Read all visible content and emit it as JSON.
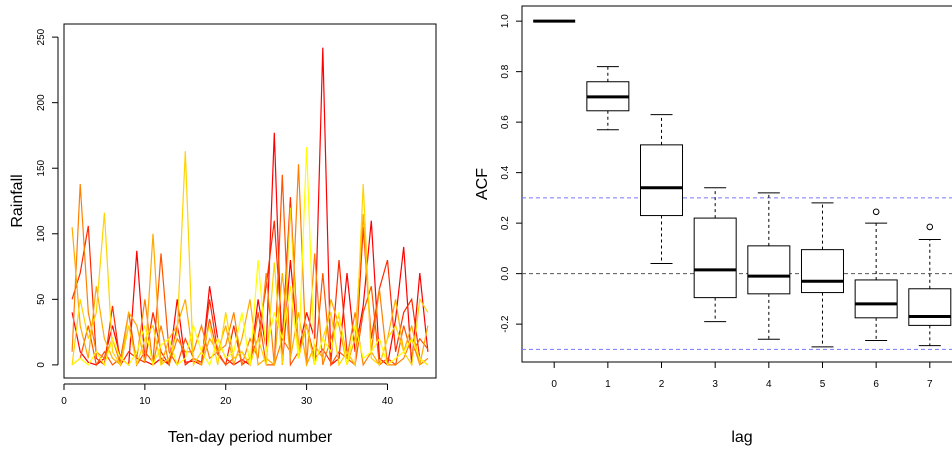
{
  "chart_data": [
    {
      "type": "line",
      "title": "",
      "xlabel": "Ten-day period number",
      "ylabel": "Rainfall",
      "xlim": [
        0,
        46
      ],
      "ylim": [
        -10,
        260
      ],
      "x_ticks": [
        0,
        10,
        20,
        30,
        40
      ],
      "y_ticks": [
        0,
        50,
        100,
        150,
        200,
        250
      ],
      "grid": false,
      "legend": "none",
      "colors": [
        "#ff0000",
        "#ff2a00",
        "#ff5500",
        "#ff8000",
        "#ffaa00",
        "#ffd400",
        "#ffff00"
      ],
      "series": [
        {
          "values": [
            40,
            10,
            2,
            0,
            5,
            30,
            5,
            0,
            87,
            3,
            0,
            5,
            0,
            50,
            2,
            3,
            0,
            60,
            20,
            5,
            0,
            4,
            0,
            50,
            12,
            177,
            0,
            80,
            10,
            40,
            20,
            242,
            0,
            5,
            70,
            10,
            45,
            110,
            5,
            0,
            35,
            90,
            0,
            70,
            10
          ]
        },
        {
          "values": [
            50,
            70,
            106,
            5,
            0,
            45,
            0,
            10,
            5,
            2,
            40,
            10,
            0,
            30,
            0,
            5,
            2,
            50,
            10,
            0,
            30,
            0,
            5,
            20,
            60,
            110,
            20,
            128,
            10,
            30,
            5,
            12,
            2,
            80,
            10,
            0,
            105,
            20,
            58,
            80,
            10,
            40,
            50,
            5,
            0
          ]
        },
        {
          "values": [
            0,
            5,
            30,
            0,
            10,
            0,
            5,
            40,
            0,
            10,
            2,
            85,
            10,
            0,
            20,
            5,
            0,
            35,
            8,
            0,
            5,
            10,
            0,
            40,
            0,
            0,
            145,
            0,
            10,
            30,
            0,
            70,
            0,
            10,
            5,
            0,
            40,
            60,
            0,
            5,
            0,
            30,
            8,
            20,
            12
          ]
        },
        {
          "values": [
            10,
            138,
            40,
            10,
            5,
            20,
            0,
            30,
            5,
            50,
            0,
            30,
            0,
            20,
            10,
            10,
            30,
            5,
            10,
            15,
            40,
            0,
            20,
            5,
            70,
            0,
            20,
            10,
            153,
            0,
            85,
            0,
            20,
            38,
            5,
            40,
            0,
            10,
            58,
            0,
            0,
            5,
            20,
            0,
            5
          ]
        },
        {
          "values": [
            105,
            30,
            5,
            60,
            20,
            5,
            0,
            40,
            30,
            2,
            100,
            0,
            20,
            30,
            50,
            5,
            0,
            20,
            10,
            30,
            0,
            20,
            50,
            0,
            5,
            0,
            70,
            5,
            40,
            0,
            15,
            5,
            50,
            30,
            0,
            20,
            115,
            10,
            0,
            20,
            50,
            10,
            30,
            0,
            30
          ]
        },
        {
          "values": [
            0,
            50,
            20,
            40,
            116,
            10,
            0,
            30,
            0,
            20,
            30,
            0,
            5,
            25,
            163,
            0,
            10,
            30,
            0,
            40,
            5,
            10,
            0,
            20,
            0,
            78,
            0,
            120,
            5,
            30,
            0,
            20,
            40,
            0,
            10,
            0,
            138,
            5,
            0,
            20,
            30,
            10,
            0,
            50,
            40
          ]
        },
        {
          "values": [
            0,
            5,
            0,
            10,
            0,
            20,
            5,
            0,
            10,
            30,
            0,
            15,
            20,
            0,
            5,
            30,
            10,
            0,
            20,
            5,
            10,
            40,
            0,
            80,
            10,
            40,
            20,
            60,
            5,
            166,
            0,
            20,
            10,
            40,
            0,
            30,
            5,
            10,
            20,
            0,
            5,
            10,
            20,
            5,
            0
          ]
        }
      ]
    },
    {
      "type": "boxplot",
      "title": "",
      "xlabel": "lag",
      "ylabel": "ACF",
      "xlim": [
        -0.6,
        7.6
      ],
      "ylim": [
        -0.35,
        1.06
      ],
      "x_ticks": [
        0,
        1,
        2,
        3,
        4,
        5,
        6,
        7
      ],
      "y_ticks": [
        -0.2,
        0.0,
        0.2,
        0.4,
        0.6,
        0.8,
        1.0
      ],
      "y_tick_labels": [
        "-0.2",
        "0.0",
        "0.2",
        "0.4",
        "0.6",
        "0.8",
        "1.0"
      ],
      "grid": false,
      "reference_lines": [
        {
          "y": 0.3,
          "color": "#7777ff",
          "style": "dashed"
        },
        {
          "y": -0.3,
          "color": "#7777ff",
          "style": "dashed"
        },
        {
          "y": 0.0,
          "color": "#555555",
          "style": "dashed"
        }
      ],
      "boxes": [
        {
          "lag": 0,
          "min": 1.0,
          "q1": 1.0,
          "median": 1.0,
          "q3": 1.0,
          "max": 1.0,
          "outliers": []
        },
        {
          "lag": 1,
          "min": 0.57,
          "q1": 0.645,
          "median": 0.7,
          "q3": 0.76,
          "max": 0.82,
          "outliers": []
        },
        {
          "lag": 2,
          "min": 0.04,
          "q1": 0.23,
          "median": 0.34,
          "q3": 0.51,
          "max": 0.63,
          "outliers": []
        },
        {
          "lag": 3,
          "min": -0.19,
          "q1": -0.095,
          "median": 0.015,
          "q3": 0.22,
          "max": 0.34,
          "outliers": []
        },
        {
          "lag": 4,
          "min": -0.26,
          "q1": -0.08,
          "median": -0.01,
          "q3": 0.11,
          "max": 0.32,
          "outliers": []
        },
        {
          "lag": 5,
          "min": -0.29,
          "q1": -0.075,
          "median": -0.03,
          "q3": 0.095,
          "max": 0.28,
          "outliers": []
        },
        {
          "lag": 6,
          "min": -0.265,
          "q1": -0.175,
          "median": -0.12,
          "q3": -0.025,
          "max": 0.2,
          "outliers": [
            0.245
          ]
        },
        {
          "lag": 7,
          "min": -0.285,
          "q1": -0.205,
          "median": -0.17,
          "q3": -0.06,
          "max": 0.135,
          "outliers": [
            0.185
          ]
        }
      ]
    }
  ]
}
